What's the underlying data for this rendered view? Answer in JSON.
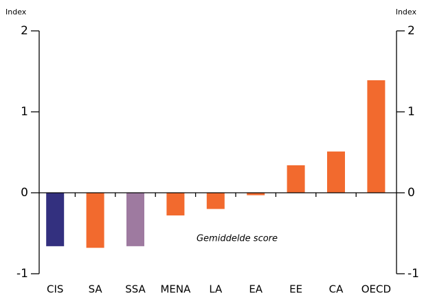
{
  "chart_data": {
    "type": "bar",
    "y_label": "Index",
    "y2_label": "Index",
    "annotation": "Gemiddelde score",
    "categories": [
      "CIS",
      "SA",
      "SSA",
      "MENA",
      "LA",
      "EA",
      "EE",
      "CA",
      "OECD"
    ],
    "values": [
      -0.66,
      -0.68,
      -0.66,
      -0.28,
      -0.2,
      -0.03,
      0.34,
      0.51,
      1.39
    ],
    "colors": [
      "#33307f",
      "#f26a2e",
      "#9e7aa0",
      "#f26a2e",
      "#f26a2e",
      "#f26a2e",
      "#f26a2e",
      "#f26a2e",
      "#f26a2e"
    ],
    "ylim": [
      -1,
      2
    ],
    "yticks": [
      -1,
      0,
      1,
      2
    ],
    "y2lim": [
      -1,
      2
    ],
    "y2ticks": [
      -1,
      0,
      1,
      2
    ]
  }
}
